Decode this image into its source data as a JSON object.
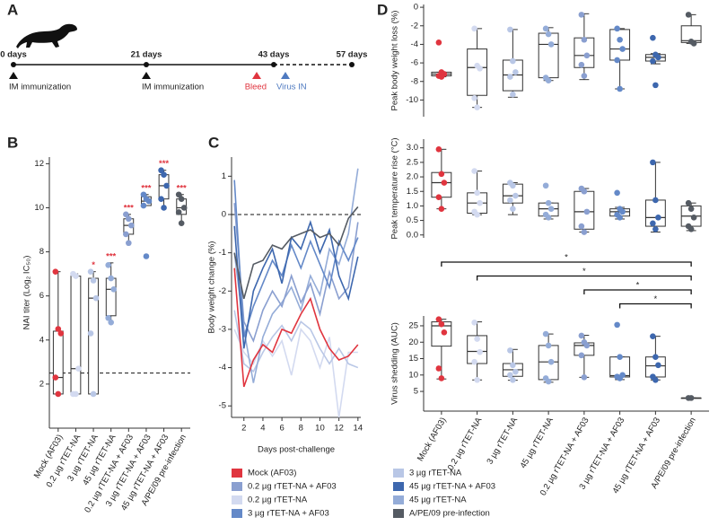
{
  "panels": [
    "A",
    "B",
    "C",
    "D"
  ],
  "timeline": {
    "days": [
      "0 days",
      "21 days",
      "43 days",
      "57 days"
    ],
    "events": [
      "IM immunization",
      "IM immunization",
      "Bleed",
      "Virus IN"
    ]
  },
  "chart_data": [
    {
      "type": "box",
      "y_label": "NAI titer (Log₂ IC₅₀)",
      "categories": [
        "Mock (AF03)",
        "0.2 µg rTET-NA",
        "3 µg rTET-NA",
        "45 µg rTET-NA",
        "0.2 µg rTET-NA + AF03",
        "3 µg rTET-NA + AF03",
        "45 µg rTET-NA + AF03",
        "A/PE/09 pre-infection"
      ],
      "colors": [
        "#e0353f",
        "#d3daf0",
        "#b9c7e6",
        "#94acd8",
        "#8a9fd0",
        "#6489c8",
        "#3d67ae",
        "#555b63"
      ],
      "boxes": [
        {
          "min": 1.55,
          "q1": 1.55,
          "median": 2.3,
          "q3": 4.4,
          "max": 7.1,
          "points": [
            7.1,
            4.5,
            4.3,
            2.3,
            1.55
          ]
        },
        {
          "min": 1.55,
          "q1": 1.55,
          "median": 2.7,
          "q3": 6.9,
          "max": 7.0,
          "points": [
            7.0,
            6.9,
            2.7,
            1.55,
            1.55
          ]
        },
        {
          "min": 1.55,
          "q1": 1.55,
          "median": 5.9,
          "q3": 6.8,
          "max": 7.1,
          "points": [
            7.1,
            6.7,
            5.9,
            4.3,
            1.55
          ]
        },
        {
          "min": 4.8,
          "q1": 5.1,
          "median": 6.3,
          "q3": 6.8,
          "max": 7.5,
          "points": [
            7.4,
            6.8,
            6.3,
            5.0,
            4.8
          ]
        },
        {
          "min": 8.4,
          "q1": 8.8,
          "median": 9.2,
          "q3": 9.5,
          "max": 9.7,
          "points": [
            9.7,
            9.5,
            9.2,
            8.8,
            8.4
          ]
        },
        {
          "min": 10.1,
          "q1": 10.1,
          "median": 10.3,
          "q3": 10.5,
          "max": 10.6,
          "points": [
            10.6,
            10.4,
            10.3,
            10.1,
            7.8
          ]
        },
        {
          "min": 10.0,
          "q1": 10.4,
          "median": 11.0,
          "q3": 11.5,
          "max": 11.7,
          "points": [
            11.7,
            11.5,
            11.0,
            10.4,
            10.0
          ]
        },
        {
          "min": 9.3,
          "q1": 9.7,
          "median": 10.0,
          "q3": 10.4,
          "max": 10.6,
          "points": [
            10.6,
            10.4,
            10.0,
            9.8,
            9.3
          ]
        }
      ],
      "significance": [
        null,
        null,
        "*",
        "***",
        "***",
        "***",
        "***",
        "***"
      ],
      "hline": 2.5,
      "ylim": [
        0,
        12.3
      ],
      "yticks": [
        2,
        4,
        6,
        8,
        10,
        12
      ]
    },
    {
      "type": "line",
      "y_label": "Body weight change (%)",
      "x_label": "Days post-challenge",
      "x": [
        1,
        2,
        3,
        4,
        5,
        6,
        7,
        8,
        9,
        10,
        11,
        12,
        13,
        14
      ],
      "series": [
        {
          "name": "Mock (AF03)",
          "color": "#e0353f",
          "values": [
            -1.4,
            -4.5,
            -3.8,
            -3.4,
            -3.6,
            -3.0,
            -3.1,
            -2.6,
            -2.2,
            -3.0,
            -3.5,
            -3.8,
            -3.7,
            -3.4
          ]
        },
        {
          "name": "0.2 µg rTET-NA + AF03",
          "color": "#8a9fd0",
          "values": [
            0.3,
            -2.8,
            -3.3,
            -2.5,
            -2.0,
            -2.4,
            -1.6,
            -2.3,
            -1.8,
            -2.6,
            -1.5,
            -2.2,
            -1.9,
            -0.2
          ]
        },
        {
          "name": "0.2 µg rTET-NA",
          "color": "#d3daf0",
          "values": [
            -3.0,
            -3.6,
            -3.9,
            -3.3,
            -3.7,
            -3.3,
            -4.2,
            -3.0,
            -3.3,
            -4.0,
            -3.2,
            -5.3,
            -3.6,
            -3.6
          ]
        },
        {
          "name": "3 µg rTET-NA + AF03",
          "color": "#6489c8",
          "values": [
            0.9,
            -3.2,
            -2.4,
            -1.8,
            -1.2,
            -1.6,
            -0.8,
            -1.4,
            -0.7,
            -1.3,
            -1.9,
            -0.7,
            -1.2,
            -0.6
          ]
        },
        {
          "name": "3 µg rTET-NA",
          "color": "#b9c7e6",
          "values": [
            -2.5,
            -3.9,
            -4.1,
            -3.6,
            -3.2,
            -2.9,
            -3.3,
            -2.8,
            -3.0,
            -3.5,
            -3.9,
            -3.5,
            -3.9,
            -4.0
          ]
        },
        {
          "name": "45 µg rTET-NA + AF03",
          "color": "#3d67ae",
          "values": [
            -0.3,
            -3.5,
            -2.0,
            -1.4,
            -0.9,
            -1.8,
            -0.6,
            -0.9,
            -0.2,
            -1.0,
            -0.4,
            -1.6,
            -2.2,
            -1.1
          ]
        },
        {
          "name": "45 µg rTET-NA",
          "color": "#94acd8",
          "values": [
            -1.0,
            -3.0,
            -4.4,
            -3.2,
            -2.6,
            -2.3,
            -1.9,
            -2.5,
            -1.6,
            -2.1,
            -0.9,
            -1.3,
            -0.5,
            1.2
          ]
        },
        {
          "name": "A/PE/09 pre-infection",
          "color": "#555b63",
          "values": [
            -1.0,
            -2.2,
            -1.3,
            -1.2,
            -0.8,
            -0.9,
            -0.6,
            -0.5,
            -0.4,
            -0.6,
            -0.5,
            -0.8,
            -0.1,
            0.2
          ]
        }
      ],
      "hline": 0,
      "xlim": [
        0.7,
        14.3
      ],
      "xticks": [
        2,
        4,
        6,
        8,
        10,
        12,
        14
      ],
      "ylim": [
        -5.3,
        1.5
      ],
      "yticks": [
        -5,
        -4,
        -3,
        -2,
        -1,
        0,
        1
      ]
    },
    {
      "type": "box",
      "y_label": "Peak body weight loss (%)",
      "colors": [
        "#e0353f",
        "#d3daf0",
        "#b9c7e6",
        "#94acd8",
        "#8a9fd0",
        "#6489c8",
        "#3d67ae",
        "#555b63"
      ],
      "boxes": [
        {
          "min": -7.5,
          "q1": -7.4,
          "median": -7.2,
          "q3": -7.0,
          "max": -7.0,
          "points": [
            -3.8,
            -7.0,
            -7.2,
            -7.4,
            -7.5
          ]
        },
        {
          "min": -10.8,
          "q1": -9.5,
          "median": -6.5,
          "q3": -4.5,
          "max": -2.3,
          "points": [
            -2.3,
            -6.3,
            -6.6,
            -9.8,
            -10.8
          ]
        },
        {
          "min": -9.7,
          "q1": -9.0,
          "median": -7.3,
          "q3": -5.7,
          "max": -2.4,
          "points": [
            -2.4,
            -5.8,
            -7.0,
            -7.5,
            -9.4
          ]
        },
        {
          "min": -7.9,
          "q1": -7.6,
          "median": -4.0,
          "q3": -2.8,
          "max": -2.2,
          "points": [
            -2.3,
            -2.9,
            -4.0,
            -7.6,
            -7.9
          ]
        },
        {
          "min": -7.8,
          "q1": -6.5,
          "median": -5.2,
          "q3": -3.3,
          "max": -0.7,
          "points": [
            -0.8,
            -3.5,
            -5.2,
            -6.2,
            -7.4
          ]
        },
        {
          "min": -8.8,
          "q1": -5.7,
          "median": -4.5,
          "q3": -2.4,
          "max": -2.3,
          "points": [
            -2.3,
            -3.5,
            -4.5,
            -5.7,
            -8.8
          ]
        },
        {
          "min": -6.1,
          "q1": -5.8,
          "median": -5.4,
          "q3": -5.1,
          "max": -5.0,
          "points": [
            -3.3,
            -5.1,
            -5.4,
            -5.8,
            -8.4
          ]
        },
        {
          "min": -3.9,
          "q1": -3.8,
          "median": -3.6,
          "q3": -2.0,
          "max": -0.8,
          "points": [
            -0.8,
            -3.7,
            -3.9
          ]
        }
      ],
      "ylim": [
        -11.8,
        0.3
      ],
      "yticks": [
        -10,
        -8,
        -6,
        -4,
        -2,
        0
      ]
    },
    {
      "type": "box",
      "y_label": "Peak temperature rise (°C)",
      "colors": [
        "#e0353f",
        "#d3daf0",
        "#b9c7e6",
        "#94acd8",
        "#8a9fd0",
        "#6489c8",
        "#3d67ae",
        "#555b63"
      ],
      "boxes": [
        {
          "min": 0.9,
          "q1": 1.3,
          "median": 1.8,
          "q3": 2.15,
          "max": 2.95,
          "points": [
            2.95,
            2.1,
            1.8,
            1.3,
            0.9
          ]
        },
        {
          "min": 0.7,
          "q1": 0.75,
          "median": 1.1,
          "q3": 1.45,
          "max": 2.2,
          "points": [
            2.2,
            1.45,
            1.1,
            0.8,
            0.7
          ]
        },
        {
          "min": 0.7,
          "q1": 1.1,
          "median": 1.35,
          "q3": 1.75,
          "max": 1.8,
          "points": [
            1.8,
            1.7,
            1.35,
            1.2,
            0.9
          ]
        },
        {
          "min": 0.55,
          "q1": 0.65,
          "median": 0.9,
          "q3": 1.1,
          "max": 1.1,
          "points": [
            1.7,
            1.1,
            0.9,
            0.7,
            0.6
          ]
        },
        {
          "min": 0.1,
          "q1": 0.2,
          "median": 0.8,
          "q3": 1.5,
          "max": 1.6,
          "points": [
            1.6,
            1.5,
            0.8,
            0.3,
            0.1
          ]
        },
        {
          "min": 0.55,
          "q1": 0.65,
          "median": 0.8,
          "q3": 0.9,
          "max": 0.95,
          "points": [
            1.45,
            0.9,
            0.8,
            0.7,
            0.6
          ]
        },
        {
          "min": 0.1,
          "q1": 0.3,
          "median": 0.6,
          "q3": 1.2,
          "max": 2.5,
          "points": [
            2.5,
            1.2,
            0.6,
            0.4,
            0.2
          ]
        },
        {
          "min": 0.15,
          "q1": 0.3,
          "median": 0.65,
          "q3": 1.0,
          "max": 1.1,
          "points": [
            1.1,
            0.9,
            0.6,
            0.3,
            0.2
          ]
        }
      ],
      "ylim": [
        -0.1,
        3.3
      ],
      "yticks": [
        {
          "value": 0,
          "label": "0.0"
        },
        {
          "value": 0.5,
          "label": "0.5"
        },
        {
          "value": 1,
          "label": "1.0"
        },
        {
          "value": 1.5,
          "label": "1.5"
        },
        {
          "value": 2,
          "label": "2.0"
        },
        {
          "value": 2.5,
          "label": "2.5"
        },
        {
          "value": 3,
          "label": "3.0"
        }
      ]
    },
    {
      "type": "box",
      "y_label": "Virus shedding (AUC)",
      "categories": [
        "Mock (AF03)",
        "0.2 µg rTET-NA",
        "3 µg rTET-NA",
        "45 µg rTET-NA",
        "0.2 µg rTET-NA + AF03",
        "3 µg rTET-NA + AF03",
        "45 µg rTET-NA + AF03",
        "A/PE/09 pre-infection"
      ],
      "colors": [
        "#e0353f",
        "#d3daf0",
        "#b9c7e6",
        "#94acd8",
        "#8a9fd0",
        "#6489c8",
        "#3d67ae",
        "#555b63"
      ],
      "boxes": [
        {
          "min": 8.8,
          "q1": 18.8,
          "median": 25.0,
          "q3": 26.2,
          "max": 27.0,
          "points": [
            27,
            25.5,
            23,
            12,
            9
          ]
        },
        {
          "min": 8.5,
          "q1": 13.5,
          "median": 17.2,
          "q3": 22.0,
          "max": 26.2,
          "points": [
            26,
            21,
            17,
            14,
            8.5
          ]
        },
        {
          "min": 8.4,
          "q1": 9.6,
          "median": 11.6,
          "q3": 13.5,
          "max": 17.8,
          "points": [
            17.5,
            13,
            11,
            10,
            8.5
          ]
        },
        {
          "min": 7.8,
          "q1": 8.6,
          "median": 14.0,
          "q3": 19.0,
          "max": 22.5,
          "points": [
            22.5,
            19,
            14,
            9,
            8
          ]
        },
        {
          "min": 9.3,
          "q1": 16.0,
          "median": 19.0,
          "q3": 19.8,
          "max": 22.1,
          "points": [
            22,
            20,
            19,
            16,
            9.3
          ]
        },
        {
          "min": 8.6,
          "q1": 9.4,
          "median": 9.8,
          "q3": 15.5,
          "max": 15.5,
          "points": [
            25.3,
            15.5,
            10,
            9.5,
            9
          ]
        },
        {
          "min": 8.5,
          "q1": 9.4,
          "median": 12.8,
          "q3": 15.5,
          "max": 21.8,
          "points": [
            21.8,
            15.5,
            13,
            9.5,
            8.5
          ]
        },
        {
          "min": 3.0,
          "q1": 3.0,
          "median": 3.0,
          "q3": 3.0,
          "max": 3.0,
          "points": [
            3,
            3
          ]
        }
      ],
      "comparisons": [
        {
          "groups": [
            "Mock (AF03)",
            "A/PE/09 pre-infection"
          ],
          "label": "*"
        },
        {
          "groups": [
            "0.2 µg rTET-NA",
            "A/PE/09 pre-infection"
          ],
          "label": "*"
        },
        {
          "groups": [
            "0.2 µg rTET-NA + AF03",
            "A/PE/09 pre-infection"
          ],
          "label": "*"
        },
        {
          "groups": [
            "3 µg rTET-NA + AF03",
            "A/PE/09 pre-infection"
          ],
          "label": "*"
        }
      ],
      "ylim": [
        -1,
        28
      ],
      "yticks": [
        5,
        10,
        15,
        20,
        25
      ]
    }
  ]
}
